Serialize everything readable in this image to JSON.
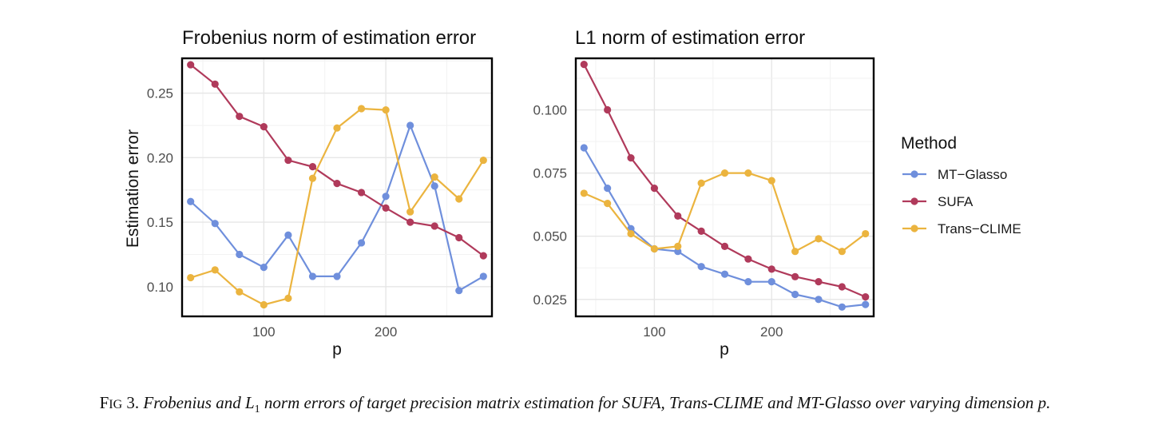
{
  "chart_data": [
    {
      "type": "line",
      "title": "Frobenius norm of estimation error",
      "xlabel": "p",
      "ylabel": "Estimation error",
      "x": [
        40,
        60,
        80,
        100,
        120,
        140,
        160,
        180,
        200,
        220,
        240,
        260,
        280
      ],
      "xlim": [
        33,
        287
      ],
      "ylim": [
        0.077,
        0.277
      ],
      "xticks": [
        100,
        200
      ],
      "yticks": [
        0.1,
        0.15,
        0.2,
        0.25
      ],
      "ytick_labels": [
        "0.10",
        "0.15",
        "0.20",
        "0.25"
      ],
      "grid": true,
      "series": [
        {
          "name": "MT−Glasso",
          "values": [
            0.166,
            0.149,
            0.125,
            0.115,
            0.14,
            0.108,
            0.108,
            0.134,
            0.17,
            0.225,
            0.178,
            0.097,
            0.108
          ]
        },
        {
          "name": "SUFA",
          "values": [
            0.272,
            0.257,
            0.232,
            0.224,
            0.198,
            0.193,
            0.18,
            0.173,
            0.161,
            0.15,
            0.147,
            0.138,
            0.124
          ]
        },
        {
          "name": "Trans−CLIME",
          "values": [
            0.107,
            0.113,
            0.096,
            0.086,
            0.091,
            0.184,
            0.223,
            0.238,
            0.237,
            0.158,
            0.185,
            0.168,
            0.198
          ]
        }
      ]
    },
    {
      "type": "line",
      "title": "L1 norm of estimation error",
      "xlabel": "p",
      "ylabel": "",
      "x": [
        40,
        60,
        80,
        100,
        120,
        140,
        160,
        180,
        200,
        220,
        240,
        260,
        280
      ],
      "xlim": [
        33,
        287
      ],
      "ylim": [
        0.0183,
        0.1204
      ],
      "xticks": [
        100,
        200
      ],
      "yticks": [
        0.025,
        0.05,
        0.075,
        0.1
      ],
      "ytick_labels": [
        "0.025",
        "0.050",
        "0.075",
        "0.100"
      ],
      "grid": true,
      "series": [
        {
          "name": "MT−Glasso",
          "values": [
            0.085,
            0.069,
            0.053,
            0.045,
            0.044,
            0.038,
            0.035,
            0.032,
            0.032,
            0.027,
            0.025,
            0.022,
            0.023
          ]
        },
        {
          "name": "SUFA",
          "values": [
            0.118,
            0.1,
            0.081,
            0.069,
            0.058,
            0.052,
            0.046,
            0.041,
            0.037,
            0.034,
            0.032,
            0.03,
            0.026
          ]
        },
        {
          "name": "Trans−CLIME",
          "values": [
            0.067,
            0.063,
            0.051,
            0.045,
            0.046,
            0.071,
            0.075,
            0.075,
            0.072,
            0.044,
            0.049,
            0.044,
            0.051
          ]
        }
      ]
    }
  ],
  "legend": {
    "title": "Method",
    "position": "right",
    "entries": [
      "MT−Glasso",
      "SUFA",
      "Trans−CLIME"
    ]
  },
  "colors": {
    "MT−Glasso": "#6f8fdc",
    "SUFA": "#b03a5b",
    "Trans−CLIME": "#ebb43f"
  },
  "caption": {
    "label_first": "F",
    "label_rest": "IG",
    "label_number": "3.",
    "text_before": "Frobenius and ",
    "math_symbol": "L",
    "math_subscript": "1",
    "text_after": " norm errors of target precision matrix estimation for SUFA, Trans-CLIME and MT-Glasso over varying dimension p."
  }
}
